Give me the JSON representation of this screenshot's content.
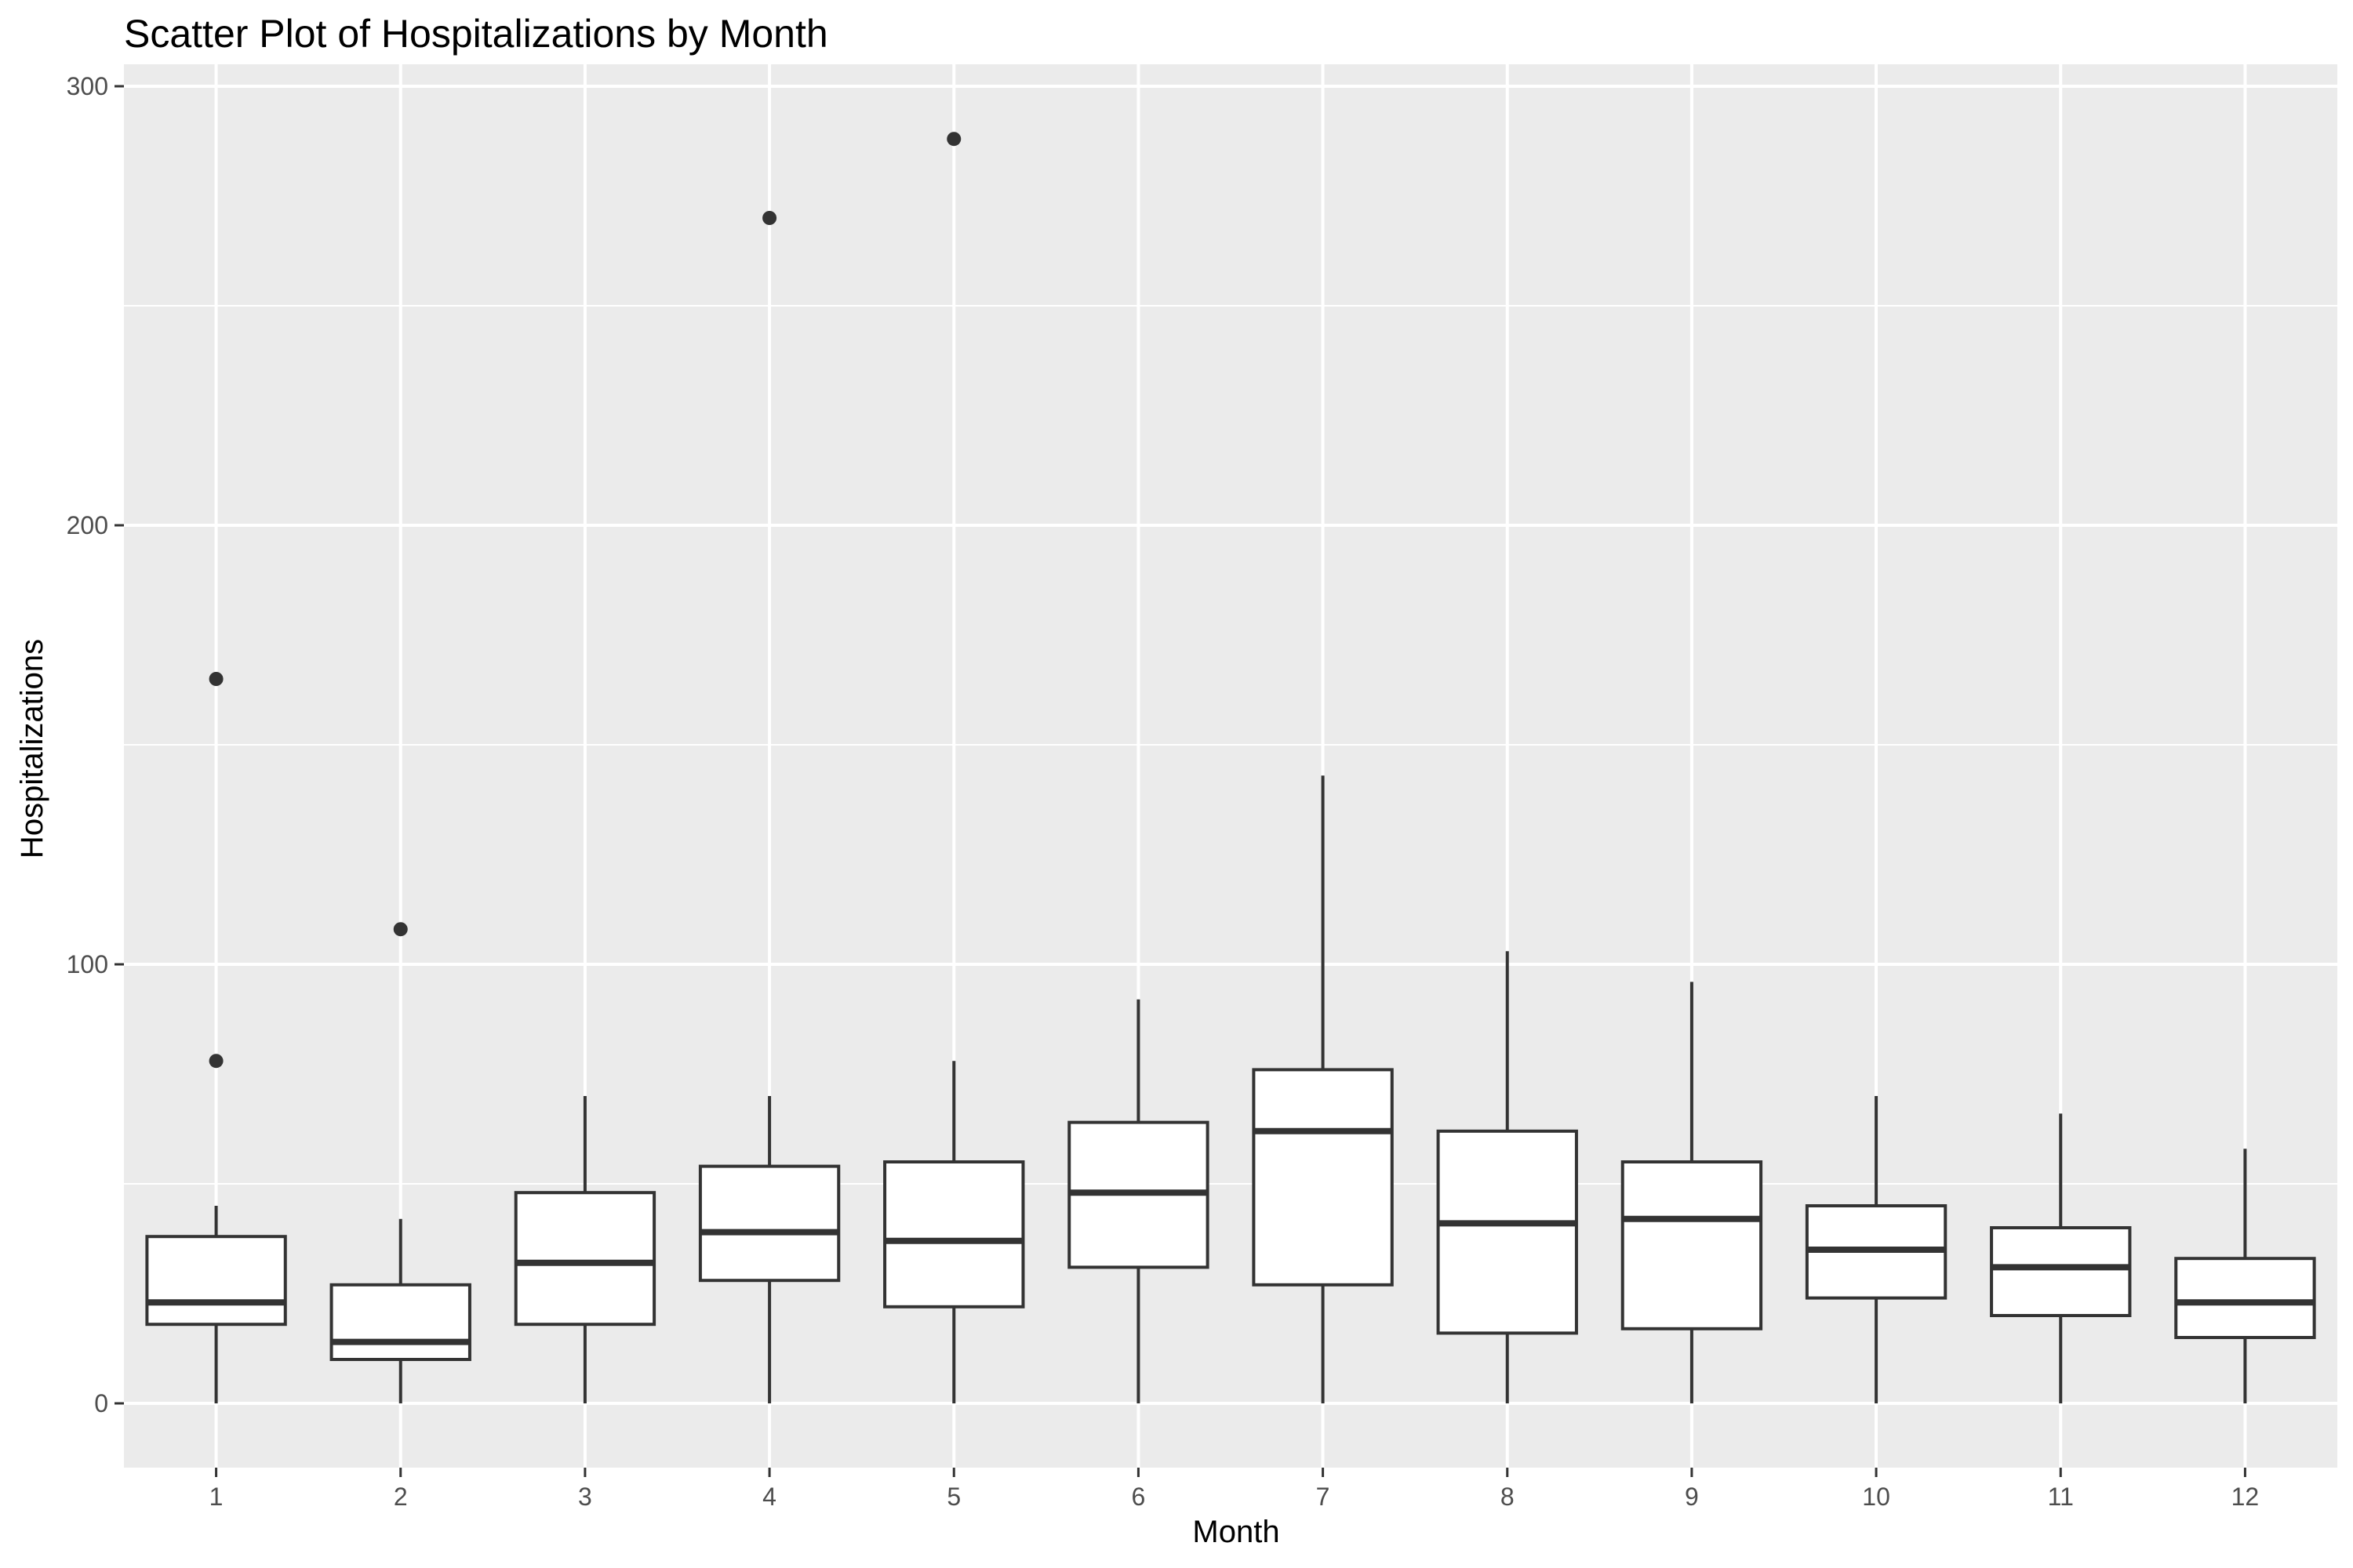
{
  "chart_data": {
    "type": "box",
    "title": "Scatter Plot of Hospitalizations by Month",
    "xlabel": "Month",
    "ylabel": "Hospitalizations",
    "ylim": [
      -15,
      300
    ],
    "y_ticks": [
      0,
      100,
      200,
      300
    ],
    "grid": true,
    "colors": {
      "panel": "#ebebeb",
      "grid": "#ffffff",
      "box_fill": "#ffffff",
      "box_stroke": "#333333",
      "outlier": "#333333"
    },
    "categories": [
      "1",
      "2",
      "3",
      "4",
      "5",
      "6",
      "7",
      "8",
      "9",
      "10",
      "11",
      "12"
    ],
    "boxes": [
      {
        "month": "1",
        "whisker_low": 0,
        "q1": 18,
        "median": 23,
        "q3": 38,
        "whisker_high": 45,
        "outliers": [
          78,
          165
        ]
      },
      {
        "month": "2",
        "whisker_low": 0,
        "q1": 10,
        "median": 14,
        "q3": 27,
        "whisker_high": 42,
        "outliers": [
          108
        ]
      },
      {
        "month": "3",
        "whisker_low": 0,
        "q1": 18,
        "median": 32,
        "q3": 48,
        "whisker_high": 70,
        "outliers": []
      },
      {
        "month": "4",
        "whisker_low": 0,
        "q1": 28,
        "median": 39,
        "q3": 54,
        "whisker_high": 70,
        "outliers": [
          270
        ]
      },
      {
        "month": "5",
        "whisker_low": 0,
        "q1": 22,
        "median": 37,
        "q3": 55,
        "whisker_high": 78,
        "outliers": [
          288
        ]
      },
      {
        "month": "6",
        "whisker_low": 0,
        "q1": 31,
        "median": 48,
        "q3": 64,
        "whisker_high": 92,
        "outliers": []
      },
      {
        "month": "7",
        "whisker_low": 0,
        "q1": 27,
        "median": 62,
        "q3": 76,
        "whisker_high": 143,
        "outliers": []
      },
      {
        "month": "8",
        "whisker_low": 0,
        "q1": 16,
        "median": 41,
        "q3": 62,
        "whisker_high": 103,
        "outliers": []
      },
      {
        "month": "9",
        "whisker_low": 0,
        "q1": 17,
        "median": 42,
        "q3": 55,
        "whisker_high": 96,
        "outliers": []
      },
      {
        "month": "10",
        "whisker_low": 0,
        "q1": 24,
        "median": 35,
        "q3": 45,
        "whisker_high": 70,
        "outliers": []
      },
      {
        "month": "11",
        "whisker_low": 0,
        "q1": 20,
        "median": 31,
        "q3": 40,
        "whisker_high": 66,
        "outliers": []
      },
      {
        "month": "12",
        "whisker_low": 0,
        "q1": 15,
        "median": 23,
        "q3": 33,
        "whisker_high": 58,
        "outliers": []
      }
    ]
  }
}
